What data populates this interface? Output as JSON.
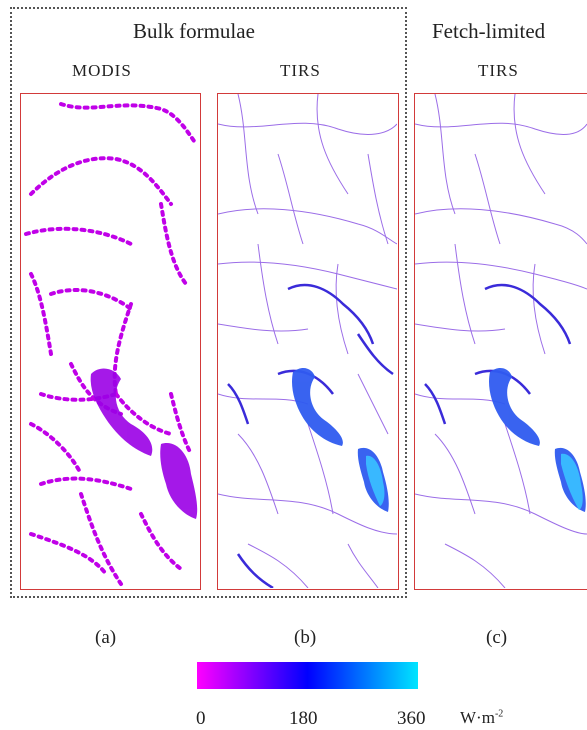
{
  "groups": {
    "bulk": "Bulk formulae",
    "fetch": "Fetch-limited"
  },
  "panels": {
    "a_sensor": "MODIS",
    "b_sensor": "TIRS",
    "c_sensor": "TIRS"
  },
  "captions": [
    "(a)",
    "(b)",
    "(c)"
  ],
  "colorbar": {
    "ticks": [
      "0",
      "180",
      "360"
    ],
    "unit_base": "W·m",
    "unit_exp": "-2",
    "colors": [
      "#ff00ff",
      "#0000ff",
      "#00e5ff"
    ]
  }
}
